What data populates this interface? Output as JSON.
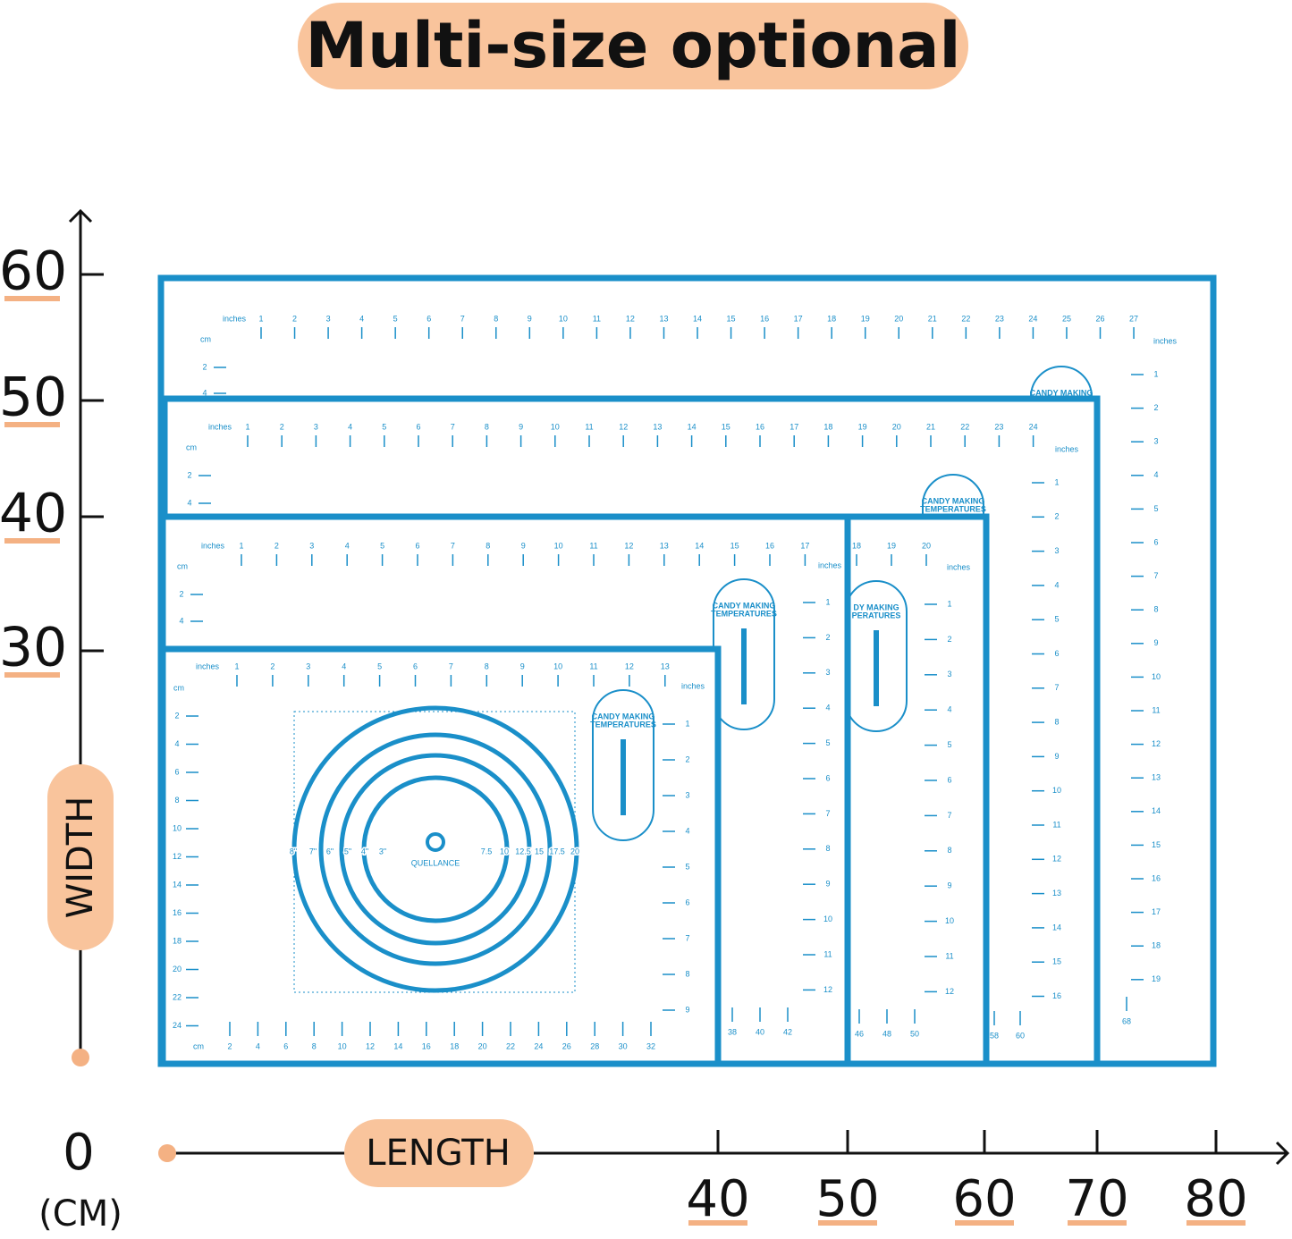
{
  "title": "Multi-size optional",
  "width_axis": {
    "label": "WIDTH",
    "ticks": [
      60,
      50,
      40,
      30
    ]
  },
  "length_axis": {
    "label": "LENGTH",
    "ticks": [
      40,
      50,
      60,
      70,
      80
    ]
  },
  "origin": {
    "zero": "0",
    "unit": "(CM)"
  },
  "mats": [
    {
      "top_unit": "inches",
      "left_unit": "cm",
      "right_unit": "inches",
      "top": [
        1,
        2,
        3,
        4,
        5,
        6,
        7,
        8,
        9,
        10,
        11,
        12,
        13,
        14,
        15,
        16,
        17,
        18,
        19,
        20,
        21,
        22,
        23,
        24,
        25,
        26,
        27
      ],
      "right": [
        1,
        2,
        3,
        4,
        5,
        6,
        7,
        8,
        9,
        10,
        11,
        12,
        13,
        14,
        15,
        16,
        17,
        18,
        19
      ],
      "left": [
        2,
        4
      ],
      "bottom": [
        68
      ],
      "badge": [
        "CANDY MAKING"
      ]
    },
    {
      "top_unit": "inches",
      "left_unit": "cm",
      "right_unit": "inches",
      "top": [
        1,
        2,
        3,
        4,
        5,
        6,
        7,
        8,
        9,
        10,
        11,
        12,
        13,
        14,
        15,
        16,
        17,
        18,
        19,
        20,
        21,
        22,
        23,
        24
      ],
      "right": [
        1,
        2,
        3,
        4,
        5,
        6,
        7,
        8,
        9,
        10,
        11,
        12,
        13,
        14,
        15,
        16
      ],
      "left": [
        2,
        4
      ],
      "bottom": [
        58,
        60
      ],
      "badge": [
        "CANDY MAKING",
        "TEMPERATURES"
      ]
    },
    {
      "right_unit": "inches",
      "top": [
        18,
        19,
        20
      ],
      "right": [
        1,
        2,
        3,
        4,
        5,
        6,
        7,
        8,
        9,
        10,
        11,
        12
      ],
      "bottom": [
        46,
        48,
        50
      ],
      "badge": [
        "DY MAKING",
        "PERATURES"
      ]
    },
    {
      "top_unit": "inches",
      "left_unit": "cm",
      "right_unit": "inches",
      "top": [
        1,
        2,
        3,
        4,
        5,
        6,
        7,
        8,
        9,
        10,
        11,
        12,
        13,
        14,
        15,
        16,
        17
      ],
      "right": [
        1,
        2,
        3,
        4,
        5,
        6,
        7,
        8,
        9,
        10,
        11,
        12
      ],
      "left": [
        2,
        4
      ],
      "bottom": [
        38,
        40,
        42
      ],
      "badge": [
        "CANDY MAKING",
        "TEMPERATURES"
      ]
    },
    {
      "top_unit": "inches",
      "left_unit": "cm",
      "right_unit": "inches",
      "bottom_unit": "cm",
      "top": [
        1,
        2,
        3,
        4,
        5,
        6,
        7,
        8,
        9,
        10,
        11,
        12,
        13
      ],
      "right": [
        1,
        2,
        3,
        4,
        5,
        6,
        7,
        8,
        9
      ],
      "left": [
        2,
        4,
        6,
        8,
        10,
        12,
        14,
        16,
        18,
        20,
        22,
        24
      ],
      "bottom": [
        2,
        4,
        6,
        8,
        10,
        12,
        14,
        16,
        18,
        20,
        22,
        24,
        26,
        28,
        30,
        32
      ],
      "badge": [
        "CANDY MAKING",
        "TEMPERATURES"
      ],
      "circle_left": [
        "8\"",
        "7\"",
        "6\"",
        "5\"",
        "4\"",
        "3\""
      ],
      "circle_right": [
        7.5,
        10,
        12.5,
        15,
        17.5,
        20
      ],
      "brand": "QUELLANCE"
    }
  ]
}
